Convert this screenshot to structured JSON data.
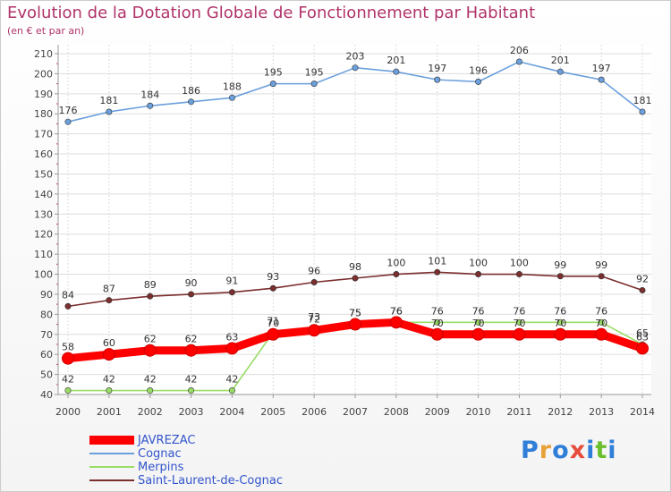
{
  "title": "Evolution de la Dotation Globale de Fonctionnement par Habitant",
  "subtitle": "(en € et par an)",
  "logo": {
    "letters": [
      "P",
      "r",
      "o",
      "x",
      "i",
      "t",
      "i"
    ],
    "colors": [
      "#2f7ed8",
      "#e8a23a",
      "#2f7ed8",
      "#e74c3c",
      "#2f7ed8",
      "#6abf2d",
      "#2f7ed8"
    ]
  },
  "chart_data": {
    "type": "line",
    "title": "Evolution de la Dotation Globale de Fonctionnement par Habitant",
    "subtitle": "(en € et par an)",
    "xlabel": "",
    "ylabel": "",
    "ylim": [
      40,
      210
    ],
    "yticks": [
      40,
      50,
      60,
      70,
      80,
      90,
      100,
      110,
      120,
      130,
      140,
      150,
      160,
      170,
      180,
      190,
      200,
      210
    ],
    "x": [
      "2000",
      "2001",
      "2002",
      "2003",
      "2004",
      "2005",
      "2006",
      "2007",
      "2008",
      "2009",
      "2010",
      "2011",
      "2012",
      "2013",
      "2014"
    ],
    "grid": true,
    "legend_position": "bottom-left",
    "series": [
      {
        "name": "JAVREZAC",
        "color": "#ff0000",
        "emphasis": true,
        "values": [
          58,
          60,
          62,
          62,
          63,
          70,
          72,
          75,
          76,
          70,
          70,
          70,
          70,
          70,
          63
        ]
      },
      {
        "name": "Cognac",
        "color": "#6ca0dc",
        "values": [
          176,
          181,
          184,
          186,
          188,
          195,
          195,
          203,
          201,
          197,
          196,
          206,
          201,
          197,
          181
        ]
      },
      {
        "name": "Merpins",
        "color": "#99dd66",
        "values": [
          42,
          42,
          42,
          42,
          42,
          71,
          73,
          75,
          76,
          76,
          76,
          76,
          76,
          76,
          65
        ]
      },
      {
        "name": "Saint-Laurent-de-Cognac",
        "color": "#7a2e2e",
        "values": [
          84,
          87,
          89,
          90,
          91,
          93,
          96,
          98,
          100,
          101,
          100,
          100,
          99,
          99,
          92
        ]
      }
    ]
  }
}
